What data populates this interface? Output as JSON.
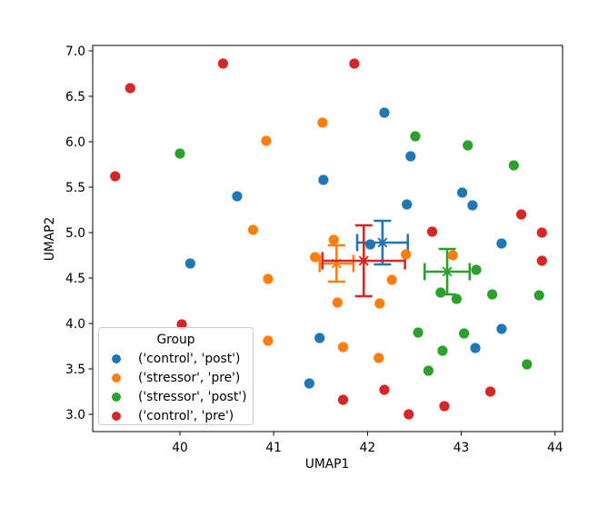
{
  "chart_data": {
    "type": "scatter",
    "title": "",
    "xlabel": "UMAP1",
    "ylabel": "UMAP2",
    "xlim": [
      39.07,
      44.08
    ],
    "ylim": [
      2.81,
      7.06
    ],
    "grid": false,
    "xtick_values": [
      40,
      41,
      42,
      43,
      44
    ],
    "xtick_labels": [
      "40",
      "41",
      "42",
      "43",
      "44"
    ],
    "ytick_values": [
      3.0,
      3.5,
      4.0,
      4.5,
      5.0,
      5.5,
      6.0,
      6.5,
      7.0
    ],
    "ytick_labels": [
      "3.0",
      "3.5",
      "4.0",
      "4.5",
      "5.0",
      "5.5",
      "6.0",
      "6.5",
      "7.0"
    ],
    "legend": {
      "title": "Group",
      "position": "lower left",
      "entries": [
        {
          "label": "('control', 'post')",
          "color": "#1f77b4"
        },
        {
          "label": "('stressor', 'pre')",
          "color": "#ff7f0e"
        },
        {
          "label": "('stressor', 'post')",
          "color": "#2ca02c"
        },
        {
          "label": "('control', 'pre')",
          "color": "#d62728"
        }
      ]
    },
    "series": [
      {
        "name": "('control', 'post')",
        "color": "#1f77b4",
        "marker": "circle",
        "points": [
          [
            40.11,
            4.66
          ],
          [
            40.61,
            5.4
          ],
          [
            41.53,
            5.58
          ],
          [
            42.18,
            6.32
          ],
          [
            42.46,
            5.84
          ],
          [
            42.42,
            5.31
          ],
          [
            43.01,
            5.44
          ],
          [
            43.12,
            5.3
          ],
          [
            43.43,
            4.88
          ],
          [
            42.03,
            4.87
          ],
          [
            41.49,
            3.84
          ],
          [
            41.38,
            3.34
          ],
          [
            43.43,
            3.94
          ],
          [
            43.15,
            3.73
          ]
        ]
      },
      {
        "name": "('stressor', 'pre')",
        "color": "#ff7f0e",
        "marker": "circle",
        "points": [
          [
            41.52,
            6.21
          ],
          [
            40.92,
            6.01
          ],
          [
            40.78,
            5.03
          ],
          [
            40.94,
            4.49
          ],
          [
            40.94,
            3.81
          ],
          [
            41.64,
            4.92
          ],
          [
            41.44,
            4.73
          ],
          [
            42.41,
            4.76
          ],
          [
            42.91,
            4.75
          ],
          [
            42.26,
            4.48
          ],
          [
            41.68,
            4.23
          ],
          [
            42.13,
            4.22
          ],
          [
            41.74,
            3.74
          ],
          [
            42.12,
            3.62
          ]
        ]
      },
      {
        "name": "('stressor', 'post')",
        "color": "#2ca02c",
        "marker": "circle",
        "points": [
          [
            40.0,
            5.87
          ],
          [
            42.51,
            6.06
          ],
          [
            43.07,
            5.96
          ],
          [
            43.56,
            5.74
          ],
          [
            43.16,
            4.59
          ],
          [
            42.78,
            4.34
          ],
          [
            42.95,
            4.27
          ],
          [
            43.33,
            4.32
          ],
          [
            43.83,
            4.31
          ],
          [
            42.54,
            3.9
          ],
          [
            43.03,
            3.89
          ],
          [
            42.8,
            3.7
          ],
          [
            43.7,
            3.55
          ],
          [
            42.65,
            3.48
          ]
        ]
      },
      {
        "name": "('control', 'pre')",
        "color": "#d62728",
        "marker": "circle",
        "points": [
          [
            39.31,
            5.62
          ],
          [
            39.47,
            6.59
          ],
          [
            40.46,
            6.86
          ],
          [
            41.86,
            6.86
          ],
          [
            40.02,
            3.99
          ],
          [
            43.64,
            5.2
          ],
          [
            43.86,
            5.0
          ],
          [
            42.69,
            5.01
          ],
          [
            43.86,
            4.69
          ],
          [
            42.18,
            3.27
          ],
          [
            41.74,
            3.16
          ],
          [
            43.31,
            3.25
          ],
          [
            42.82,
            3.09
          ],
          [
            42.44,
            3.0
          ]
        ]
      }
    ],
    "centroid_errorbars": [
      {
        "group": "('control', 'post')",
        "color": "#1f77b4",
        "x": 42.16,
        "y": 4.89,
        "xerr": 0.27,
        "yerr": 0.24,
        "marker": "x"
      },
      {
        "group": "('stressor', 'pre')",
        "color": "#ff7f0e",
        "x": 41.67,
        "y": 4.66,
        "xerr": 0.18,
        "yerr": 0.2,
        "marker": "x"
      },
      {
        "group": "('stressor', 'post')",
        "color": "#2ca02c",
        "x": 42.85,
        "y": 4.57,
        "xerr": 0.24,
        "yerr": 0.25,
        "marker": "x"
      },
      {
        "group": "('control', 'pre')",
        "color": "#d62728",
        "x": 41.96,
        "y": 4.69,
        "xerr": 0.44,
        "yerr": 0.39,
        "marker": "x"
      }
    ]
  }
}
